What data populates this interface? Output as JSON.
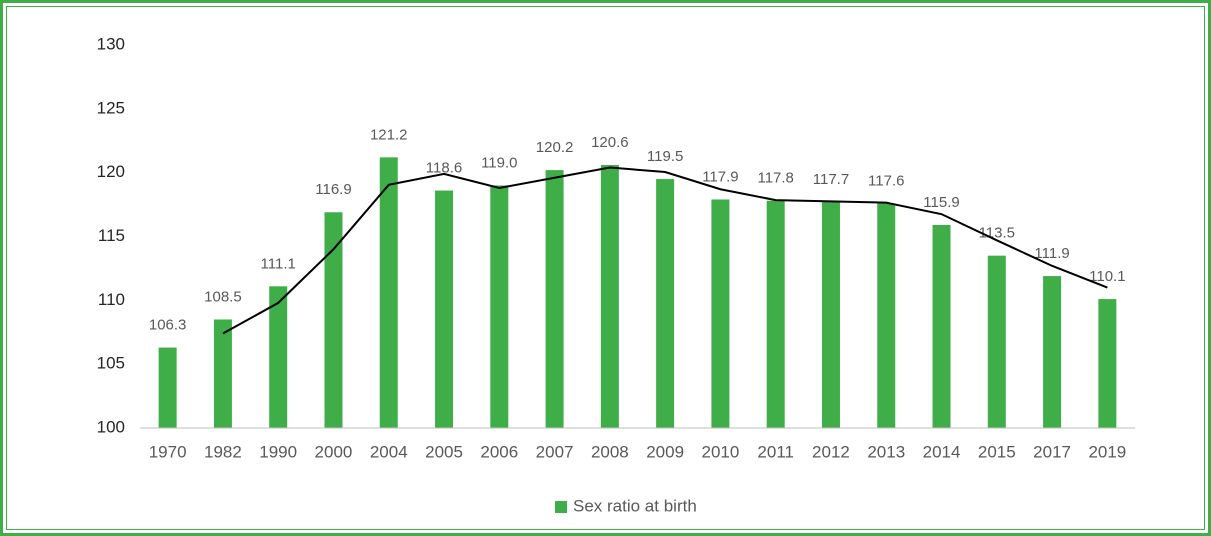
{
  "chart_data": {
    "type": "bar",
    "categories": [
      "1970",
      "1982",
      "1990",
      "2000",
      "2004",
      "2005",
      "2006",
      "2007",
      "2008",
      "2009",
      "2010",
      "2011",
      "2012",
      "2013",
      "2014",
      "2015",
      "2017",
      "2019"
    ],
    "series": [
      {
        "name": "Sex ratio at birth",
        "color": "#3fae49",
        "values": [
          106.3,
          108.5,
          111.1,
          116.9,
          121.2,
          118.6,
          119.0,
          120.2,
          120.6,
          119.5,
          117.9,
          117.8,
          117.7,
          117.6,
          115.9,
          113.5,
          111.9,
          110.1
        ],
        "value_labels": [
          "106.3",
          "108.5",
          "111.1",
          "116.9",
          "121.2",
          "118.6",
          "119.0",
          "120.2",
          "120.6",
          "119.5",
          "117.9",
          "117.8",
          "117.7",
          "117.6",
          "115.9",
          "113.5",
          "111.9",
          "110.1"
        ]
      }
    ],
    "trendline": {
      "type": "line",
      "color": "#000000",
      "values": [
        null,
        107.4,
        109.8,
        114.0,
        119.05,
        119.9,
        118.8,
        119.6,
        120.4,
        120.05,
        118.7,
        117.85,
        117.75,
        117.65,
        116.75,
        114.7,
        112.7,
        111.0
      ]
    },
    "ylim": [
      100,
      130
    ],
    "yticks": [
      100,
      105,
      110,
      115,
      120,
      125,
      130
    ],
    "legend": "bottom"
  }
}
